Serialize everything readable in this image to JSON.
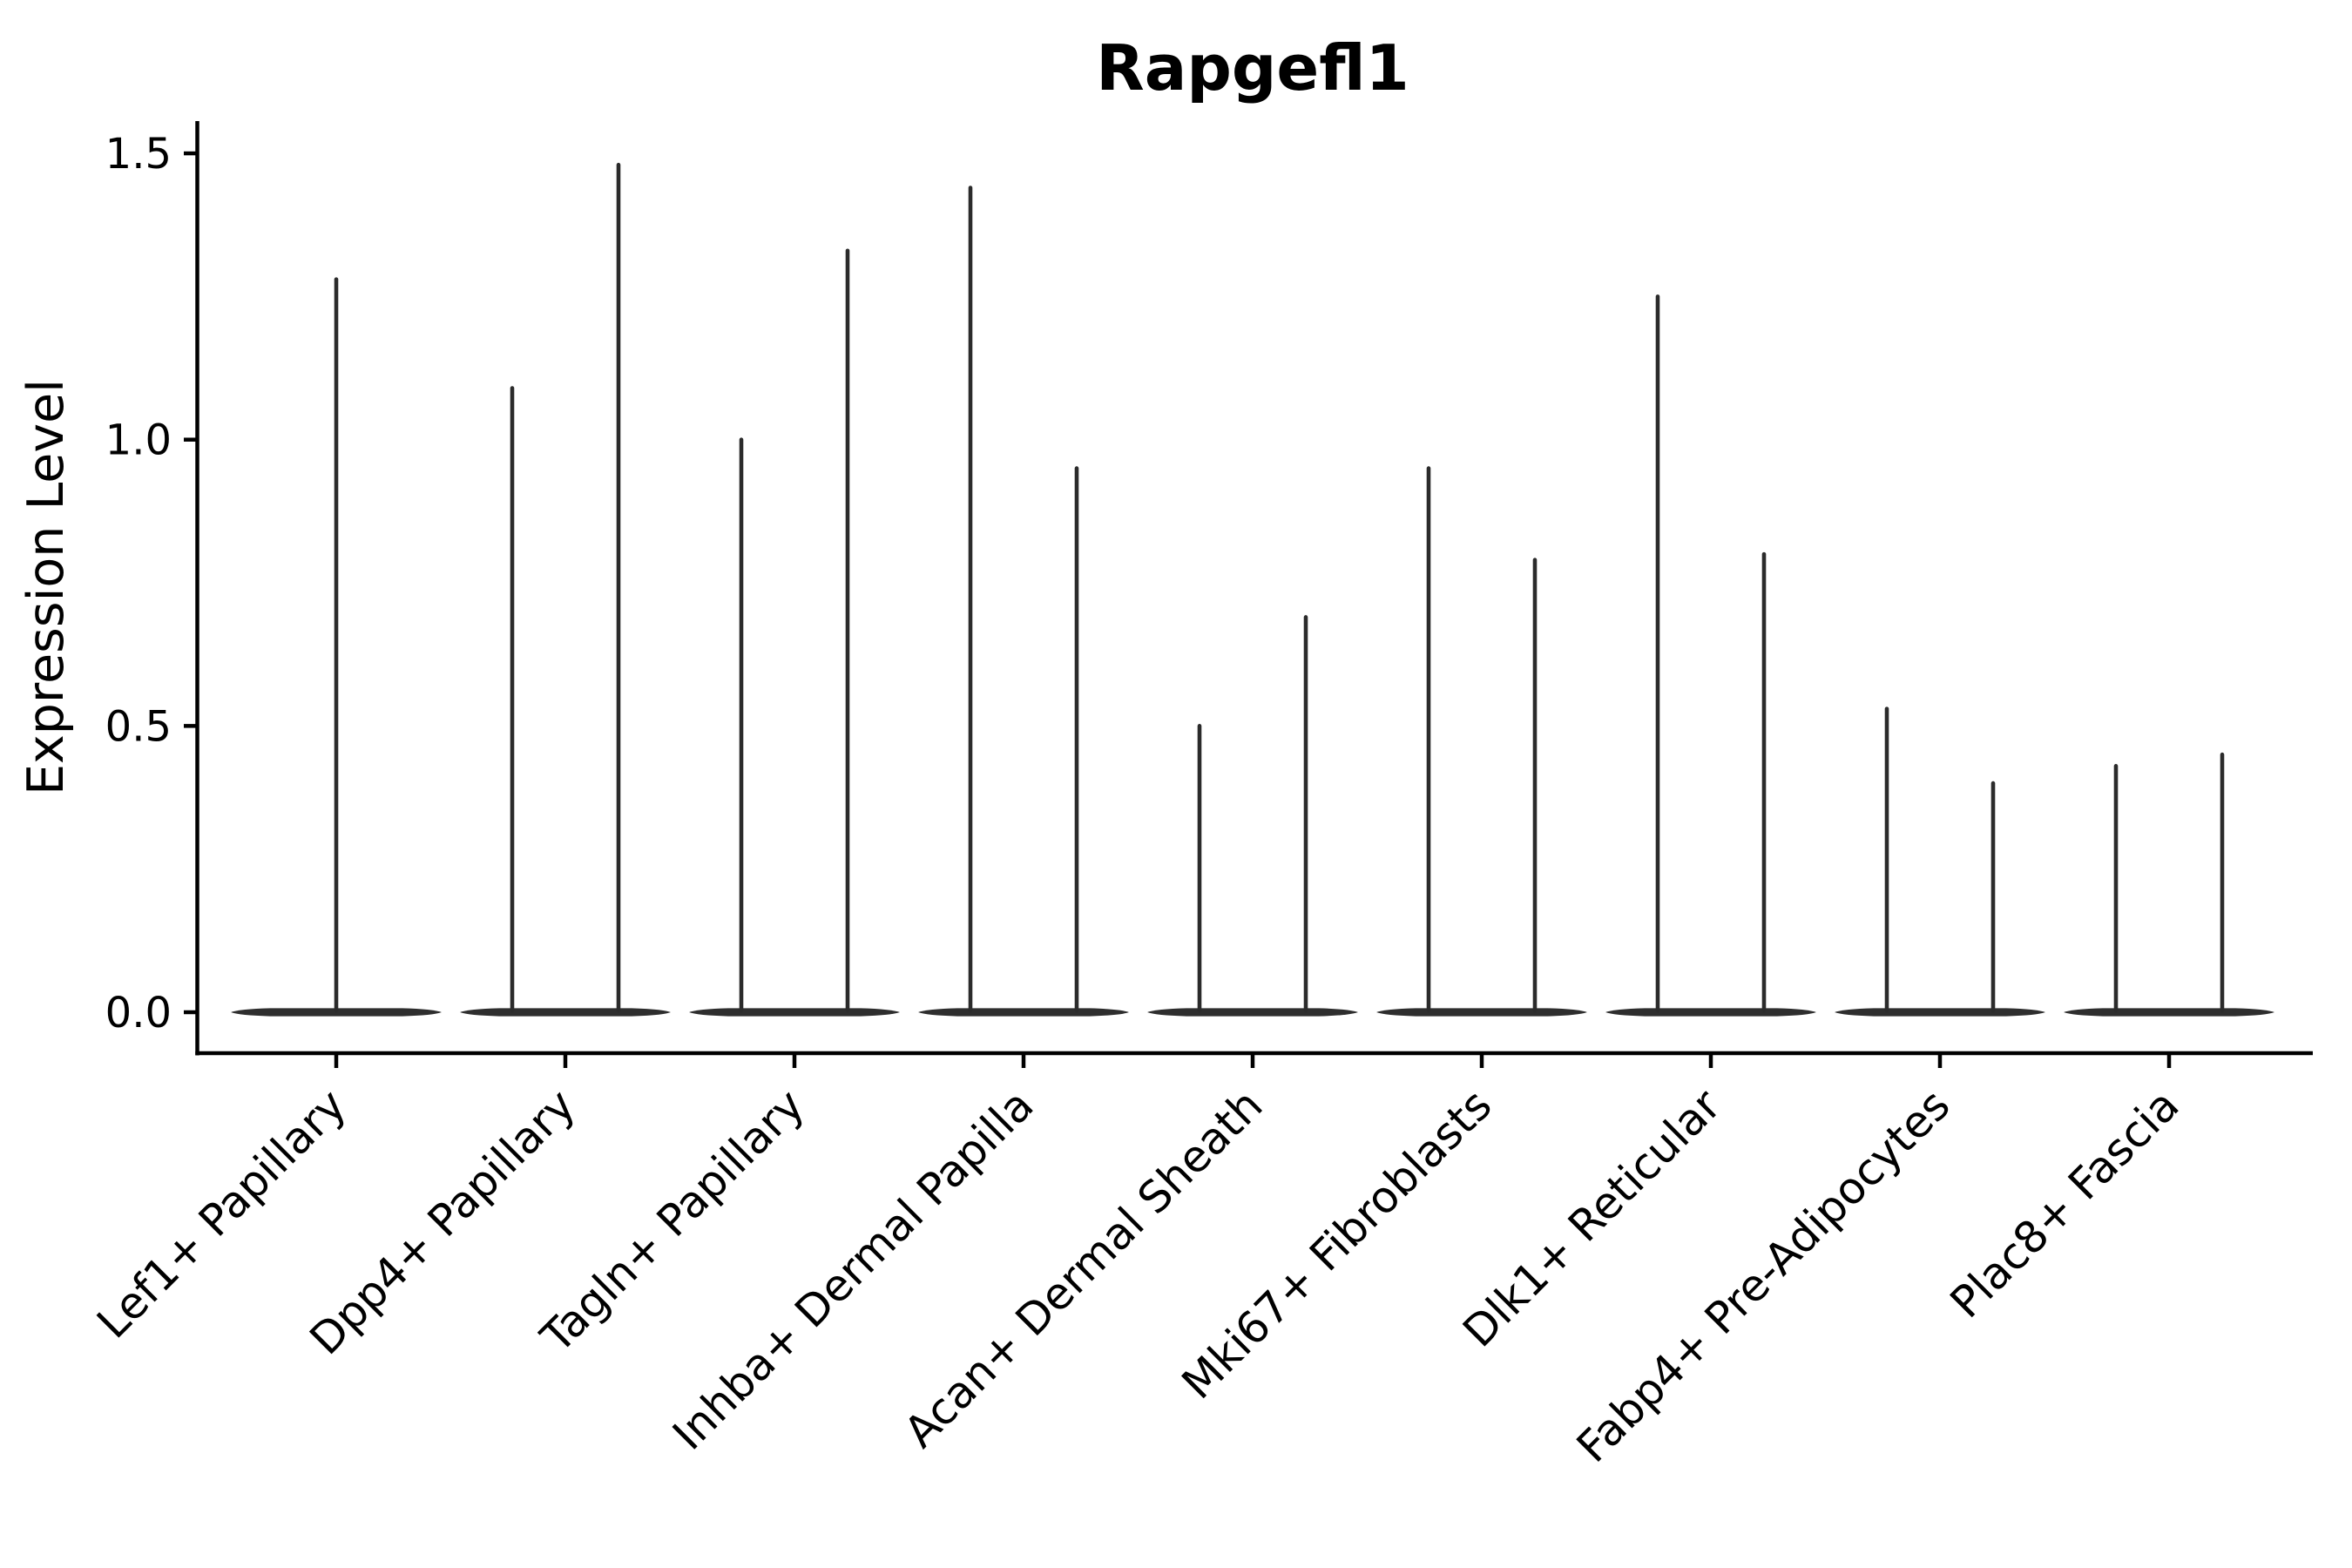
{
  "chart_data": {
    "type": "violin",
    "title": "Rapgefl1",
    "xlabel": "",
    "ylabel": "Expression Level",
    "ytick_labels": [
      "0.0",
      "0.5",
      "1.0",
      "1.5"
    ],
    "ytick_values": [
      0.0,
      0.5,
      1.0,
      1.5
    ],
    "ylim": [
      -0.07,
      1.56
    ],
    "grid": "off",
    "legend": "none",
    "categories": [
      {
        "label": "Lef1+ Papillary",
        "violin_maxima": [
          1.28
        ]
      },
      {
        "label": "Dpp4+ Papillary",
        "violin_maxima": [
          1.09,
          1.48
        ]
      },
      {
        "label": "Tagln+ Papillary",
        "violin_maxima": [
          1.0,
          1.33
        ]
      },
      {
        "label": "Inhba+ Dermal Papilla",
        "violin_maxima": [
          1.44,
          0.95
        ]
      },
      {
        "label": "Acan+ Dermal Sheath",
        "violin_maxima": [
          0.5,
          0.69
        ]
      },
      {
        "label": "Mki67+ Fibroblasts",
        "violin_maxima": [
          0.95,
          0.79
        ]
      },
      {
        "label": "Dlk1+ Reticular",
        "violin_maxima": [
          1.25,
          0.8
        ]
      },
      {
        "label": "Fabp4+ Pre-Adipocytes",
        "violin_maxima": [
          0.53,
          0.4
        ]
      },
      {
        "label": "Plac8+ Fascia",
        "violin_maxima": [
          0.43,
          0.45
        ]
      }
    ],
    "colors": {
      "violin": "#2b2b2b",
      "violin_base": "#2e2e2e",
      "axis": "#000000",
      "text": "#000000",
      "background": "#ffffff"
    }
  }
}
